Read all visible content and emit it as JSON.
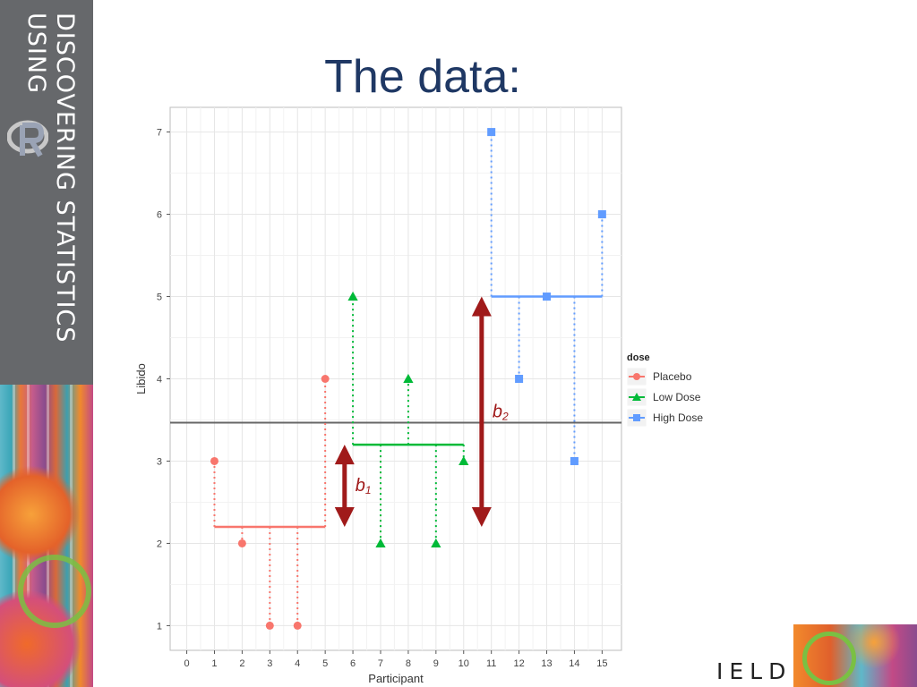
{
  "slide": {
    "title": "The data:",
    "brand_line1": "DISCOVERING STATISTICS",
    "brand_line2": "USING",
    "publisher_fragment": "IELD"
  },
  "chart_data": {
    "type": "scatter",
    "title": "",
    "xlabel": "Participant",
    "ylabel": "Libido",
    "xlim": [
      -0.6,
      15.7
    ],
    "ylim": [
      0.7,
      7.3
    ],
    "xticks": [
      0,
      1,
      2,
      3,
      4,
      5,
      6,
      7,
      8,
      9,
      10,
      11,
      12,
      13,
      14,
      15
    ],
    "yticks": [
      1,
      2,
      3,
      4,
      5,
      6,
      7
    ],
    "grid": true,
    "grand_mean": 3.467,
    "legend": {
      "title": "dose",
      "position": "right"
    },
    "series": [
      {
        "name": "Placebo",
        "color": "#f8766d",
        "marker": "circle",
        "x": [
          1,
          2,
          3,
          4,
          5
        ],
        "y": [
          3,
          2,
          1,
          1,
          4
        ],
        "mean": 2.2
      },
      {
        "name": "Low Dose",
        "color": "#00ba38",
        "marker": "triangle",
        "x": [
          6,
          7,
          8,
          9,
          10
        ],
        "y": [
          5,
          2,
          4,
          2,
          3
        ],
        "mean": 3.2
      },
      {
        "name": "High Dose",
        "color": "#619cff",
        "marker": "square",
        "x": [
          11,
          12,
          13,
          14,
          15
        ],
        "y": [
          7,
          4,
          5,
          3,
          6
        ],
        "mean": 5.0
      }
    ],
    "annotations": [
      {
        "label": "b",
        "subscript": "1",
        "from": 2.2,
        "to": 3.2,
        "x": 5.7
      },
      {
        "label": "b",
        "subscript": "2",
        "from": 2.2,
        "to": 5.0,
        "x": 10.65
      }
    ]
  }
}
